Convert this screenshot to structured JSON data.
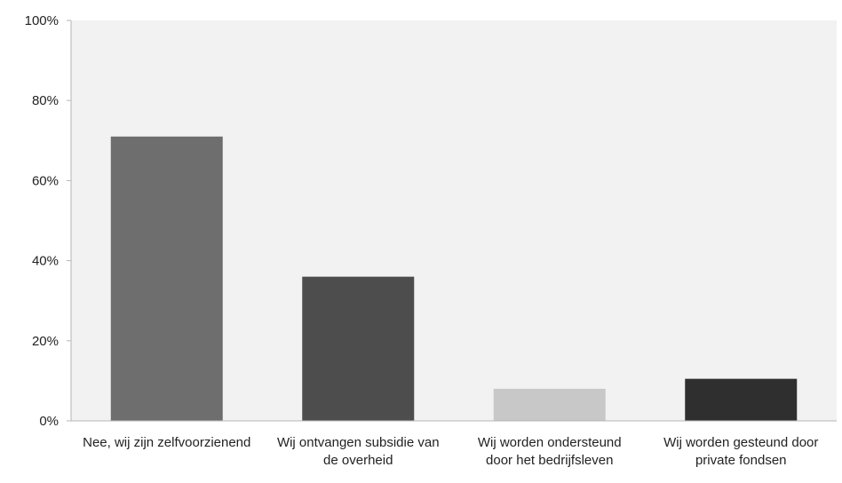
{
  "chart_data": {
    "type": "bar",
    "categories": [
      [
        "Nee, wij zijn zelfvoorzienend"
      ],
      [
        "Wij ontvangen subsidie van",
        "de overheid"
      ],
      [
        "Wij worden ondersteund",
        "door het bedrijfsleven"
      ],
      [
        "Wij worden gesteund door",
        "private fondsen"
      ]
    ],
    "values": [
      71,
      36,
      8,
      10.5
    ],
    "bar_colors": [
      "#6e6e6e",
      "#4d4d4d",
      "#c8c8c8",
      "#2f2f2f"
    ],
    "y_ticks": [
      0,
      20,
      40,
      60,
      80,
      100
    ],
    "y_tick_labels": [
      "0%",
      "20%",
      "40%",
      "60%",
      "80%",
      "100%"
    ],
    "ylim": [
      0,
      100
    ],
    "plot_background": "#f2f2f2",
    "grid": false,
    "title": "",
    "xlabel": "",
    "ylabel": ""
  }
}
